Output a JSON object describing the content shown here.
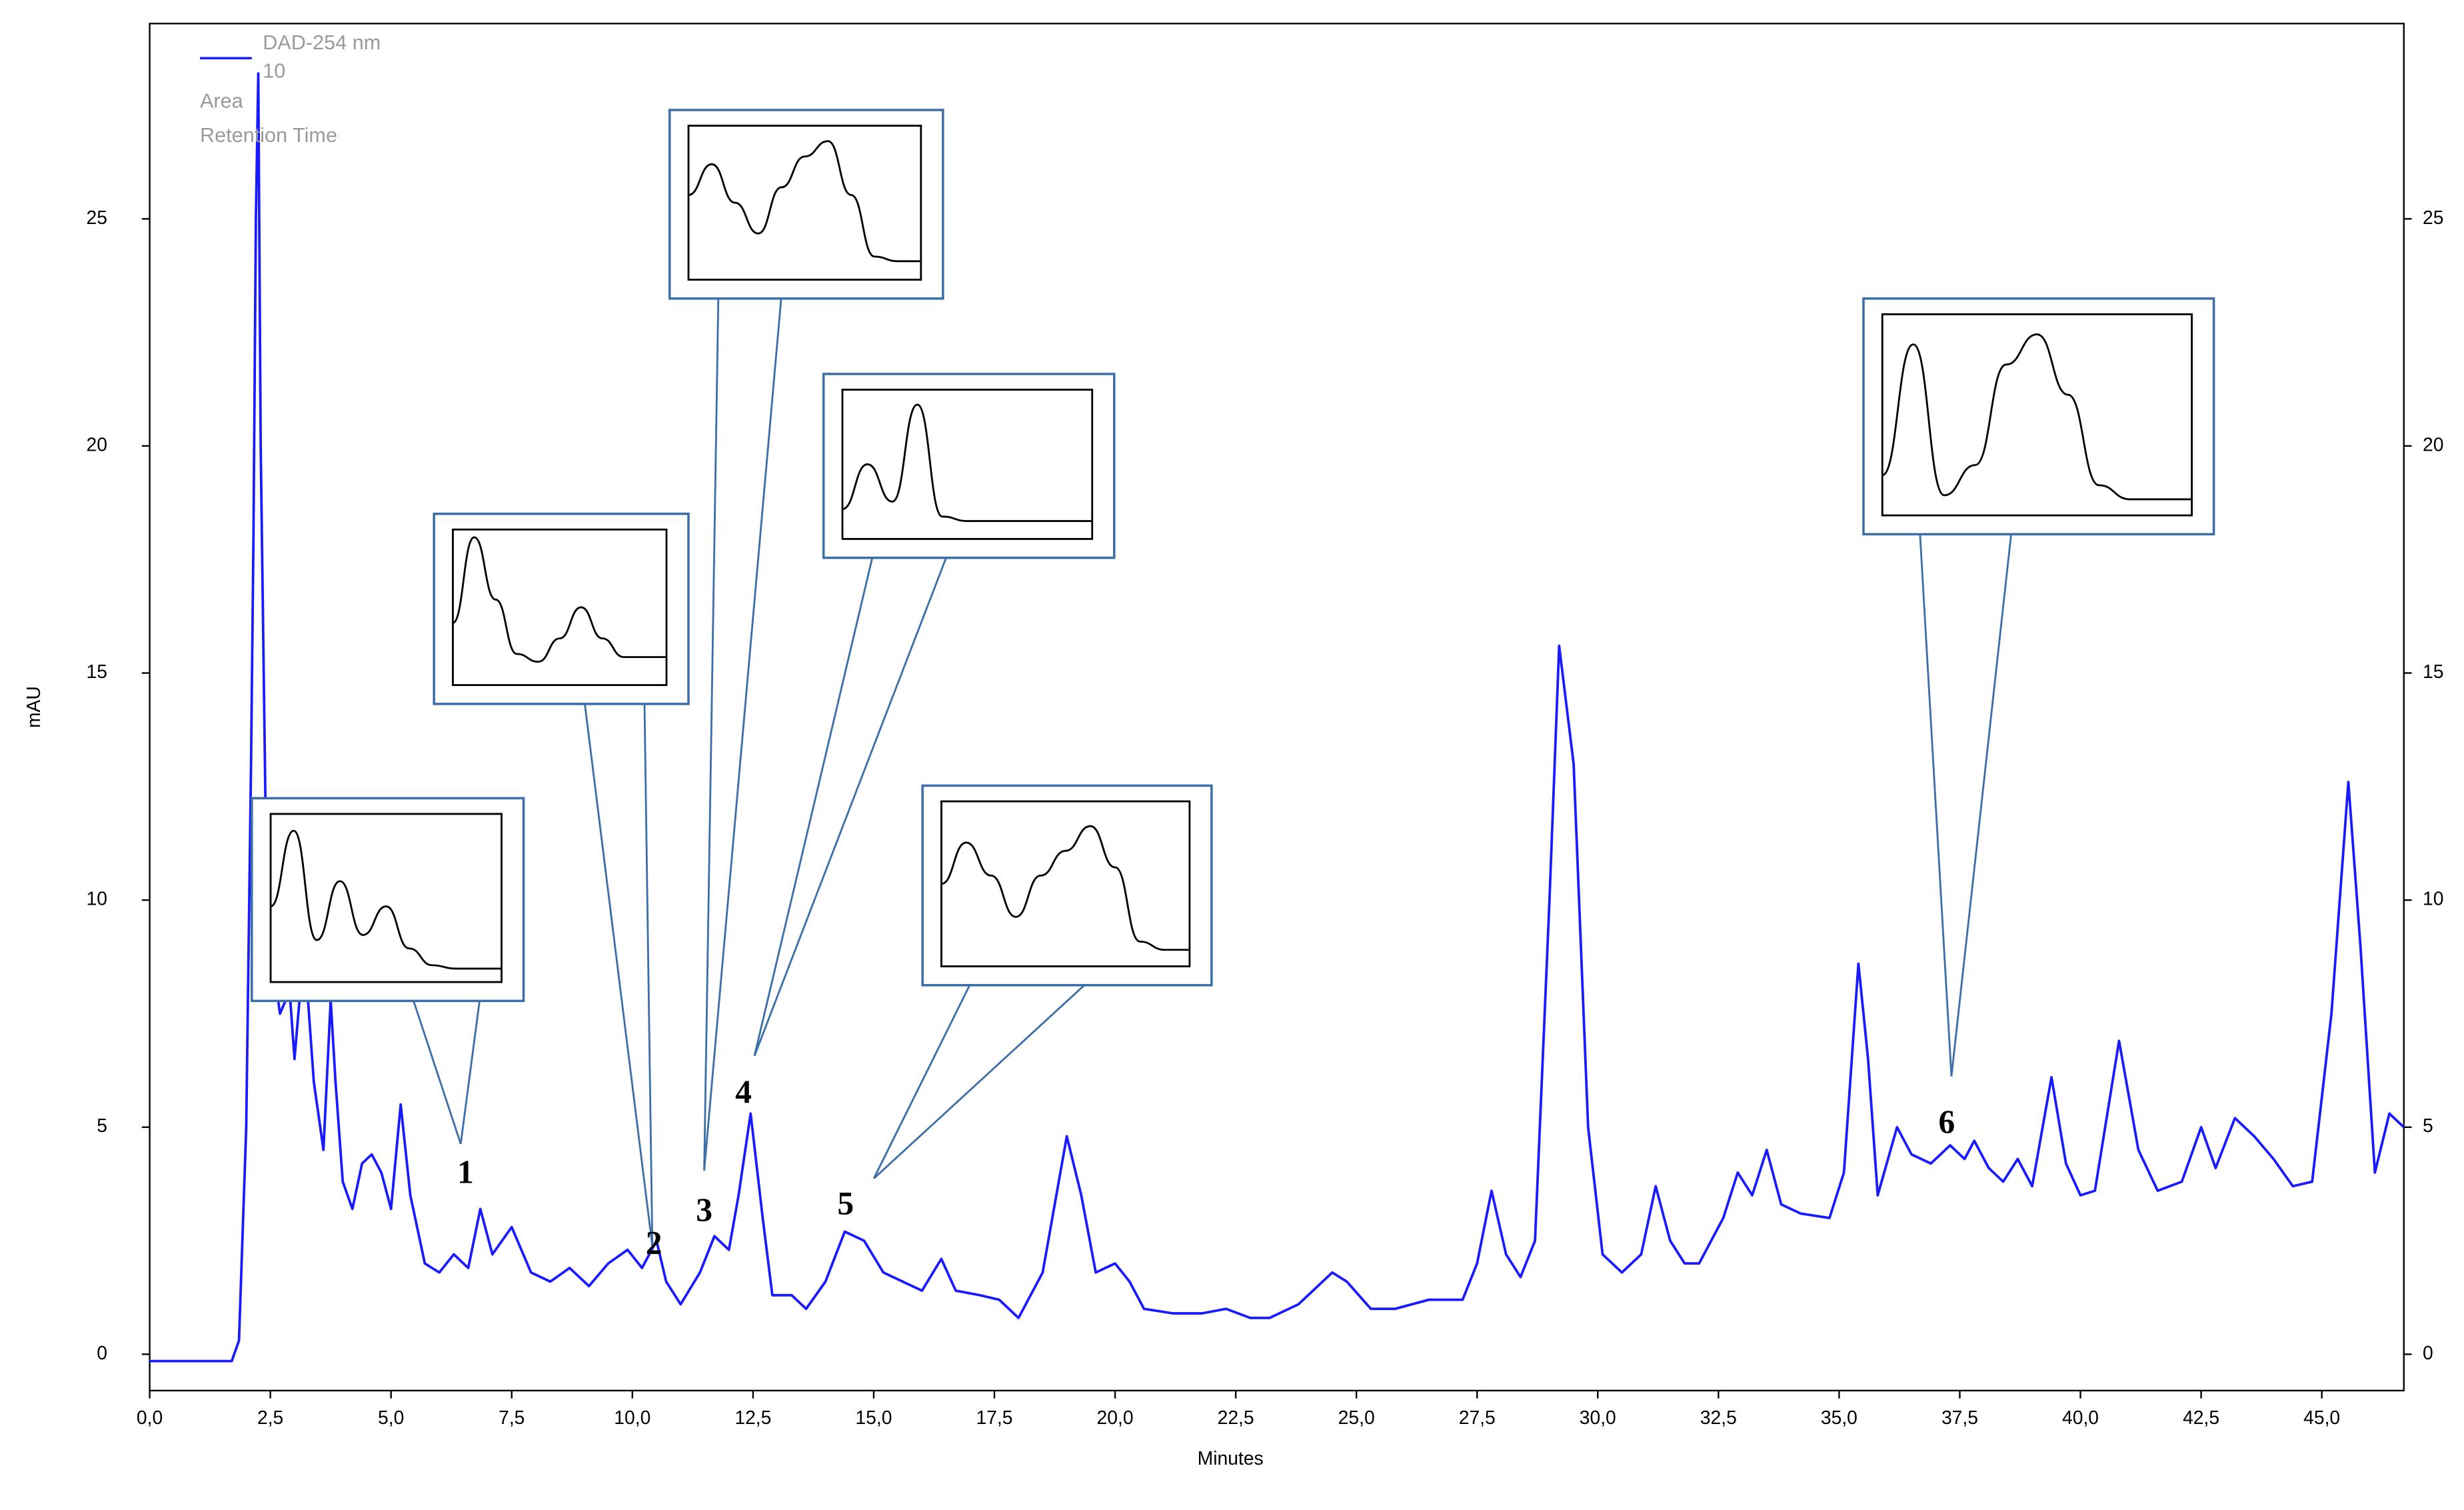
{
  "chart_data": {
    "type": "line",
    "xlabel": "Minutes",
    "ylabel": "mAU",
    "xlim": [
      0,
      46.7
    ],
    "ylim": [
      -0.8,
      29.3
    ],
    "xticks": [
      {
        "value": 0,
        "label": "0,0"
      },
      {
        "value": 2.5,
        "label": "2,5"
      },
      {
        "value": 5,
        "label": "5,0"
      },
      {
        "value": 7.5,
        "label": "7,5"
      },
      {
        "value": 10,
        "label": "10,0"
      },
      {
        "value": 12.5,
        "label": "12,5"
      },
      {
        "value": 15,
        "label": "15,0"
      },
      {
        "value": 17.5,
        "label": "17,5"
      },
      {
        "value": 20,
        "label": "20,0"
      },
      {
        "value": 22.5,
        "label": "22,5"
      },
      {
        "value": 25,
        "label": "25,0"
      },
      {
        "value": 27.5,
        "label": "27,5"
      },
      {
        "value": 30,
        "label": "30,0"
      },
      {
        "value": 32.5,
        "label": "32,5"
      },
      {
        "value": 35,
        "label": "35,0"
      },
      {
        "value": 37.5,
        "label": "37,5"
      },
      {
        "value": 40,
        "label": "40,0"
      },
      {
        "value": 42.5,
        "label": "42,5"
      },
      {
        "value": 45,
        "label": "45,0"
      }
    ],
    "yticks": [
      0,
      5,
      10,
      15,
      20,
      25
    ],
    "legend_extra": [
      "10",
      "Area",
      "Retention Time"
    ],
    "annotations": [
      "1",
      "2",
      "3",
      "4",
      "5",
      "6"
    ],
    "x": [
      0,
      1.0,
      1.7,
      1.85,
      2.0,
      2.1,
      2.15,
      2.2,
      2.25,
      2.3,
      2.4,
      2.5,
      2.7,
      2.9,
      3.0,
      3.2,
      3.4,
      3.6,
      3.75,
      3.85,
      4.0,
      4.2,
      4.4,
      4.6,
      4.8,
      5.0,
      5.2,
      5.4,
      5.7,
      6.0,
      6.3,
      6.6,
      6.85,
      7.1,
      7.5,
      7.9,
      8.3,
      8.7,
      9.1,
      9.5,
      9.9,
      10.2,
      10.5,
      10.7,
      11.0,
      11.4,
      11.7,
      12.0,
      12.2,
      12.45,
      12.7,
      12.9,
      13.3,
      13.6,
      14.0,
      14.4,
      14.8,
      15.2,
      15.6,
      16.0,
      16.4,
      16.7,
      17.2,
      17.6,
      18.0,
      18.5,
      19.0,
      19.3,
      19.6,
      20.0,
      20.3,
      20.6,
      21.2,
      21.8,
      22.3,
      22.8,
      23.2,
      23.8,
      24.5,
      24.8,
      25.3,
      25.8,
      26.5,
      27.2,
      27.5,
      27.8,
      28.1,
      28.4,
      28.7,
      29.0,
      29.2,
      29.5,
      29.8,
      30.1,
      30.5,
      30.9,
      31.2,
      31.5,
      31.8,
      32.1,
      32.6,
      32.9,
      33.2,
      33.5,
      33.8,
      34.2,
      34.8,
      35.1,
      35.4,
      35.6,
      35.8,
      36.2,
      36.5,
      36.9,
      37.3,
      37.6,
      37.8,
      38.1,
      38.4,
      38.7,
      39.0,
      39.4,
      39.7,
      40.0,
      40.3,
      40.8,
      41.2,
      41.6,
      42.1,
      42.5,
      42.8,
      43.2,
      43.6,
      44.0,
      44.4,
      44.8,
      45.2,
      45.55,
      45.8,
      46.1,
      46.4,
      46.7
    ],
    "series": [
      {
        "name": "DAD-254 nm",
        "color": "#1a1aff",
        "values": [
          -0.15,
          -0.15,
          -0.15,
          0.3,
          5,
          13,
          18,
          25,
          28.2,
          20,
          12,
          9,
          7.5,
          8,
          6.5,
          9,
          6,
          4.5,
          7.8,
          6,
          3.8,
          3.2,
          4.2,
          4.4,
          4.0,
          3.2,
          5.5,
          3.5,
          2,
          1.8,
          2.2,
          1.9,
          3.2,
          2.2,
          2.8,
          1.8,
          1.6,
          1.9,
          1.5,
          2.0,
          2.3,
          1.9,
          2.5,
          1.6,
          1.1,
          1.8,
          2.6,
          2.3,
          3.5,
          5.3,
          3.0,
          1.3,
          1.3,
          1.0,
          1.6,
          2.7,
          2.5,
          1.8,
          1.6,
          1.4,
          2.1,
          1.4,
          1.3,
          1.2,
          0.8,
          1.8,
          4.8,
          3.5,
          1.8,
          2.0,
          1.6,
          1.0,
          0.9,
          0.9,
          1.0,
          0.8,
          0.8,
          1.1,
          1.8,
          1.6,
          1.0,
          1.0,
          1.2,
          1.2,
          2.0,
          3.6,
          2.2,
          1.7,
          2.5,
          10,
          15.6,
          13,
          5,
          2.2,
          1.8,
          2.2,
          3.7,
          2.5,
          2.0,
          2.0,
          3.0,
          4.0,
          3.5,
          4.5,
          3.3,
          3.1,
          3.0,
          4.0,
          8.6,
          6.5,
          3.5,
          5.0,
          4.4,
          4.2,
          4.6,
          4.3,
          4.7,
          4.1,
          3.8,
          4.3,
          3.7,
          6.1,
          4.2,
          3.5,
          3.6,
          6.9,
          4.5,
          3.6,
          3.8,
          5.0,
          4.1,
          5.2,
          4.8,
          4.3,
          3.7,
          3.8,
          7.5,
          12.6,
          9.0,
          4.0,
          5.3,
          5.0
        ]
      }
    ]
  }
}
